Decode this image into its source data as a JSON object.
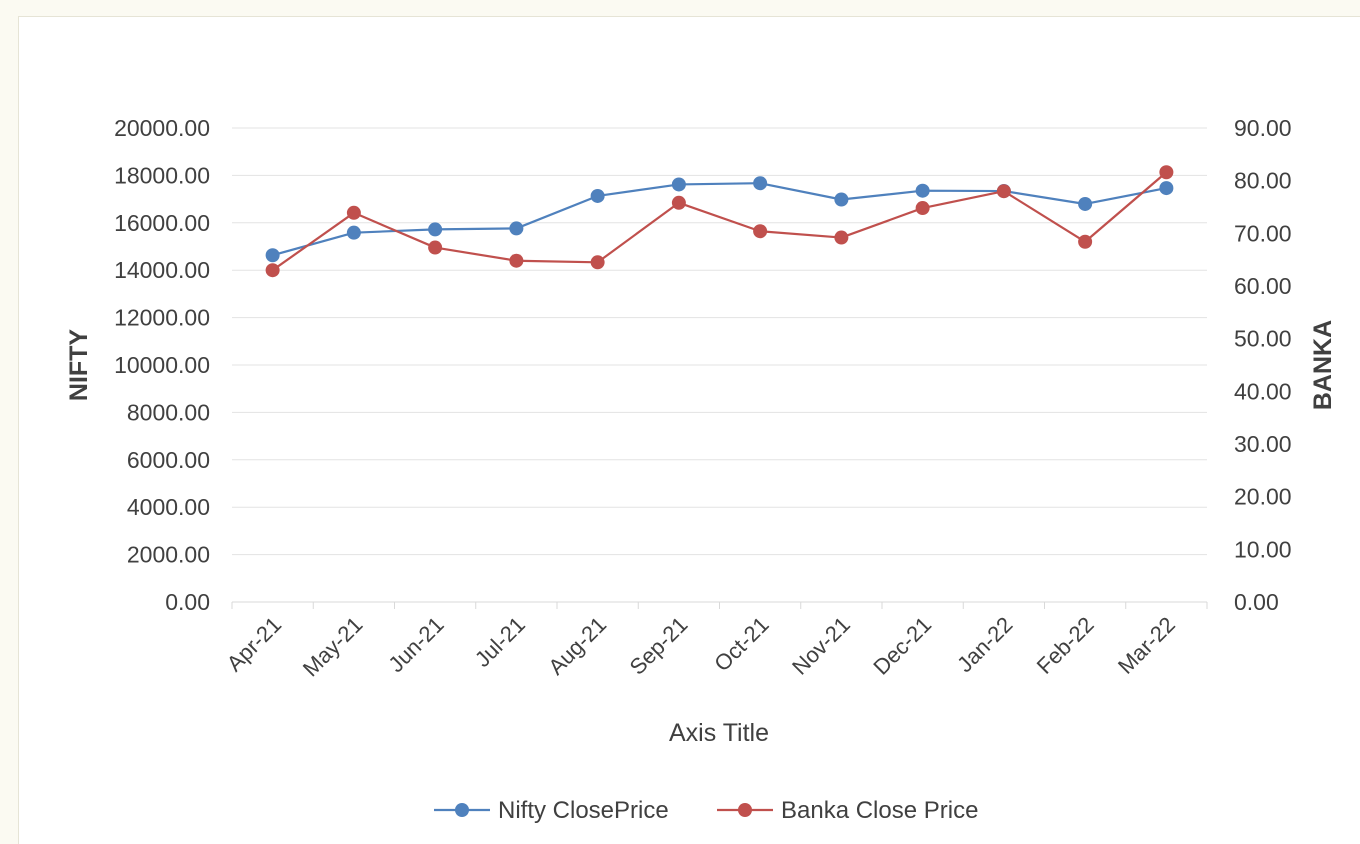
{
  "chart_data": {
    "type": "line",
    "title": "",
    "categories": [
      "Apr-21",
      "May-21",
      "Jun-21",
      "Jul-21",
      "Aug-21",
      "Sep-21",
      "Oct-21",
      "Nov-21",
      "Dec-21",
      "Jan-22",
      "Feb-22",
      "Mar-22"
    ],
    "xlabel": "Axis Title",
    "ylabel_left": "NIFTY",
    "ylabel_right": "BANKA",
    "ylim_left": [
      0,
      20000
    ],
    "ylim_right": [
      0,
      90
    ],
    "yticks_left": [
      "0.00",
      "2000.00",
      "4000.00",
      "6000.00",
      "8000.00",
      "10000.00",
      "12000.00",
      "14000.00",
      "16000.00",
      "18000.00",
      "20000.00"
    ],
    "yticks_right": [
      "0.00",
      "10.00",
      "20.00",
      "30.00",
      "40.00",
      "50.00",
      "60.00",
      "70.00",
      "80.00",
      "90.00"
    ],
    "grid": true,
    "legend_position": "bottom",
    "series": [
      {
        "name": "Nifty ClosePrice",
        "axis": "left",
        "color": "#4f81bd",
        "values": [
          14631,
          15583,
          15722,
          15763,
          17132,
          17618,
          17671,
          16983,
          17354,
          17340,
          16794,
          17465
        ]
      },
      {
        "name": "Banka Close Price",
        "axis": "right",
        "color": "#c0504d",
        "values": [
          63.0,
          73.9,
          67.3,
          64.8,
          64.5,
          75.8,
          70.4,
          69.2,
          74.8,
          78.0,
          68.4,
          81.6
        ]
      }
    ]
  }
}
